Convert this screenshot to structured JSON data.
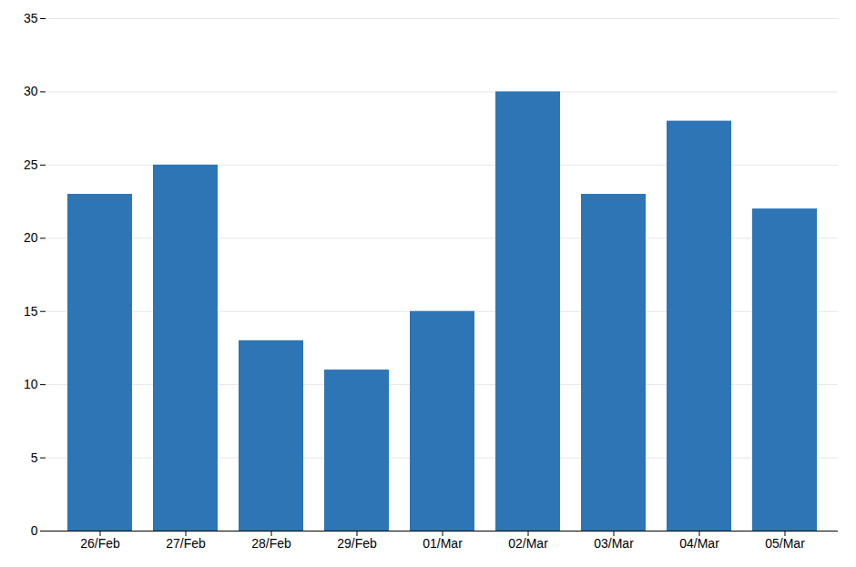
{
  "chart_data": {
    "type": "bar",
    "categories": [
      "26/Feb",
      "27/Feb",
      "28/Feb",
      "29/Feb",
      "01/Mar",
      "02/Mar",
      "03/Mar",
      "04/Mar",
      "05/Mar"
    ],
    "values": [
      23,
      25,
      13,
      11,
      15,
      30,
      23,
      28,
      22
    ],
    "color": "#2E75B6",
    "ylim": [
      0,
      35
    ],
    "yticks": [
      0,
      5,
      10,
      15,
      20,
      25,
      30,
      35
    ],
    "grid": true
  }
}
